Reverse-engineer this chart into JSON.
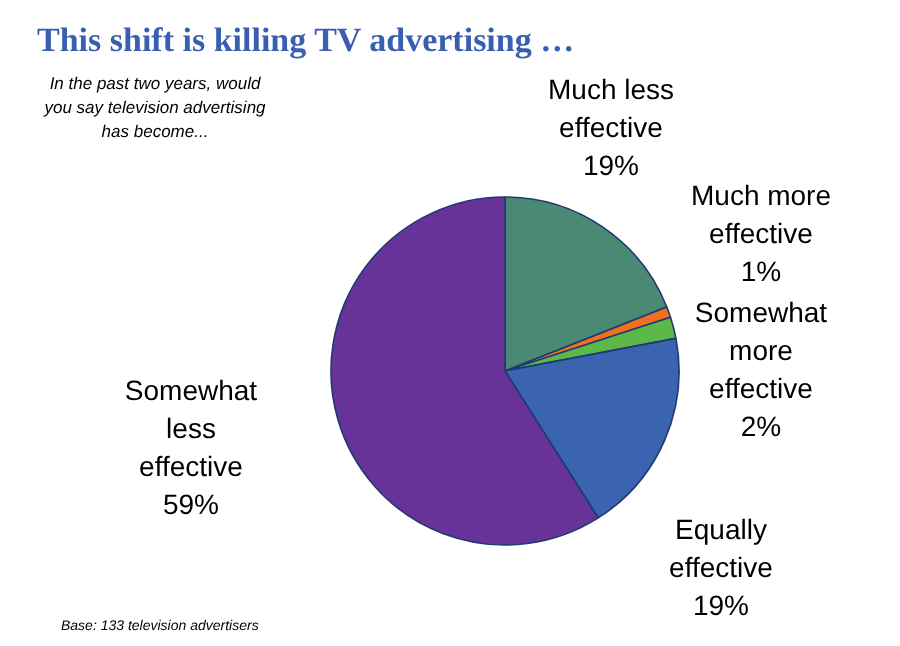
{
  "chart_data": {
    "type": "pie",
    "title": "This shift is killing TV advertising …",
    "subtitle": "In the past two years, would you say television advertising has become...",
    "categories": [
      "Much less effective",
      "Much more effective",
      "Somewhat more effective",
      "Equally effective",
      "Somewhat less effective"
    ],
    "values": [
      19,
      1,
      2,
      19,
      59
    ],
    "value_labels": [
      "19%",
      "1%",
      "2%",
      "19%",
      "59%"
    ],
    "colors": [
      "#4a8a74",
      "#f07020",
      "#5cb848",
      "#3a64b0",
      "#673399"
    ],
    "annotations": [
      "Base: 133 television advertisers"
    ]
  }
}
